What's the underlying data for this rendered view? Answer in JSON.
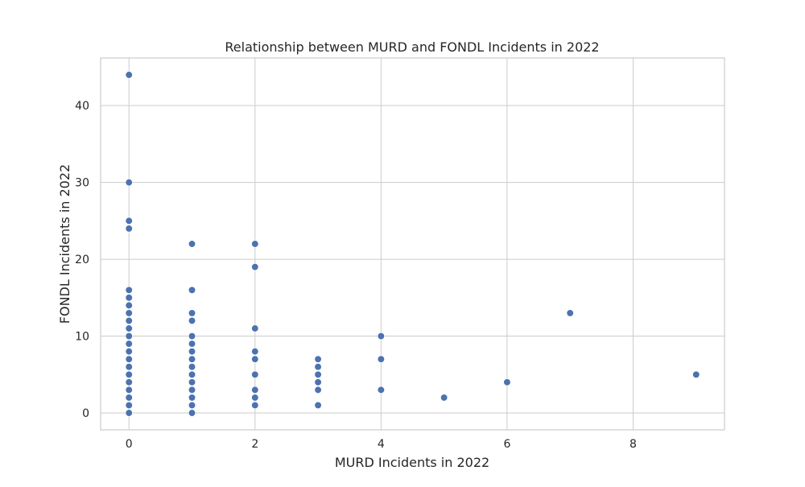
{
  "chart_data": {
    "type": "scatter",
    "title": "Relationship between MURD and FONDL Incidents in 2022",
    "xlabel": "MURD Incidents in 2022",
    "ylabel": "FONDL Incidents in 2022",
    "xlim": [
      -0.45,
      9.45
    ],
    "ylim": [
      -2.2,
      46.2
    ],
    "xticks": [
      0,
      2,
      4,
      6,
      8
    ],
    "yticks": [
      0,
      10,
      20,
      30,
      40
    ],
    "grid": true,
    "point_color": "#4c72b0",
    "points": [
      {
        "x": 0,
        "y": 44
      },
      {
        "x": 0,
        "y": 30
      },
      {
        "x": 0,
        "y": 25
      },
      {
        "x": 0,
        "y": 24
      },
      {
        "x": 0,
        "y": 16
      },
      {
        "x": 0,
        "y": 15
      },
      {
        "x": 0,
        "y": 14
      },
      {
        "x": 0,
        "y": 13
      },
      {
        "x": 0,
        "y": 12
      },
      {
        "x": 0,
        "y": 11
      },
      {
        "x": 0,
        "y": 10
      },
      {
        "x": 0,
        "y": 9
      },
      {
        "x": 0,
        "y": 8
      },
      {
        "x": 0,
        "y": 7
      },
      {
        "x": 0,
        "y": 6
      },
      {
        "x": 0,
        "y": 5
      },
      {
        "x": 0,
        "y": 4
      },
      {
        "x": 0,
        "y": 3
      },
      {
        "x": 0,
        "y": 2
      },
      {
        "x": 0,
        "y": 1
      },
      {
        "x": 0,
        "y": 0
      },
      {
        "x": 1,
        "y": 22
      },
      {
        "x": 1,
        "y": 16
      },
      {
        "x": 1,
        "y": 13
      },
      {
        "x": 1,
        "y": 12
      },
      {
        "x": 1,
        "y": 10
      },
      {
        "x": 1,
        "y": 9
      },
      {
        "x": 1,
        "y": 8
      },
      {
        "x": 1,
        "y": 7
      },
      {
        "x": 1,
        "y": 6
      },
      {
        "x": 1,
        "y": 5
      },
      {
        "x": 1,
        "y": 4
      },
      {
        "x": 1,
        "y": 3
      },
      {
        "x": 1,
        "y": 2
      },
      {
        "x": 1,
        "y": 1
      },
      {
        "x": 1,
        "y": 0
      },
      {
        "x": 2,
        "y": 22
      },
      {
        "x": 2,
        "y": 19
      },
      {
        "x": 2,
        "y": 11
      },
      {
        "x": 2,
        "y": 8
      },
      {
        "x": 2,
        "y": 7
      },
      {
        "x": 2,
        "y": 5
      },
      {
        "x": 2,
        "y": 3
      },
      {
        "x": 2,
        "y": 2
      },
      {
        "x": 2,
        "y": 1
      },
      {
        "x": 3,
        "y": 7
      },
      {
        "x": 3,
        "y": 6
      },
      {
        "x": 3,
        "y": 5
      },
      {
        "x": 3,
        "y": 4
      },
      {
        "x": 3,
        "y": 3
      },
      {
        "x": 3,
        "y": 1
      },
      {
        "x": 4,
        "y": 10
      },
      {
        "x": 4,
        "y": 7
      },
      {
        "x": 4,
        "y": 3
      },
      {
        "x": 5,
        "y": 2
      },
      {
        "x": 6,
        "y": 4
      },
      {
        "x": 7,
        "y": 13
      },
      {
        "x": 9,
        "y": 5
      }
    ]
  }
}
